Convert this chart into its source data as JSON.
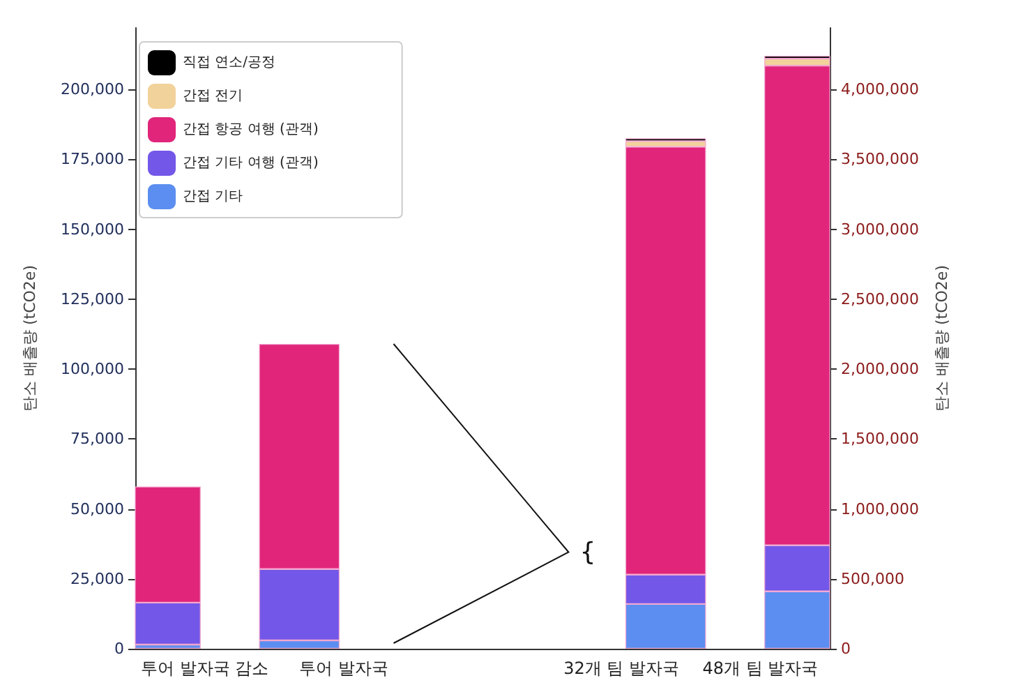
{
  "chart_data": {
    "type": "bar",
    "stacked": true,
    "categories": [
      "투어 발자국 감소",
      "투어 발자국",
      null,
      "32개 팀 발자국",
      "48개 팀 발자국"
    ],
    "ylabel": "탄소 배출량 (tCO2e)",
    "y2label": "탄소 배출량 (tCO2e)",
    "ylim": [
      0,
      222000
    ],
    "yticks": [
      {
        "value": 0,
        "label": "0"
      },
      {
        "value": 25000,
        "label": "25,000"
      },
      {
        "value": 50000,
        "label": "50,000"
      },
      {
        "value": 75000,
        "label": "75,000"
      },
      {
        "value": 100000,
        "label": "100,000"
      },
      {
        "value": 125000,
        "label": "125,000"
      },
      {
        "value": 150000,
        "label": "150,000"
      },
      {
        "value": 175000,
        "label": "175,000"
      },
      {
        "value": 200000,
        "label": "200,000"
      }
    ],
    "y2lim": [
      0,
      4440000
    ],
    "y2ticks": [
      {
        "value": 0,
        "label": "0"
      },
      {
        "value": 500000,
        "label": "500,000"
      },
      {
        "value": 1000000,
        "label": "1,000,000"
      },
      {
        "value": 1500000,
        "label": "1,500,000"
      },
      {
        "value": 2000000,
        "label": "2,000,000"
      },
      {
        "value": 2500000,
        "label": "2,500,000"
      },
      {
        "value": 3000000,
        "label": "3,000,000"
      },
      {
        "value": 3500000,
        "label": "3,500,000"
      },
      {
        "value": 4000000,
        "label": "4,000,000"
      }
    ],
    "series": [
      {
        "name": "간접 기타",
        "color": "#5b8ef0",
        "values": [
          1500,
          3000,
          null,
          null,
          null
        ]
      },
      {
        "name": "간접 기타 여행 (관객)",
        "color": "#7357e8",
        "values": [
          15000,
          25500,
          null,
          null,
          null
        ]
      },
      {
        "name": "간접 항공 여행 (관객)",
        "color": "#e0257a",
        "values": [
          41500,
          80500,
          null,
          null,
          null
        ]
      },
      {
        "color": "#5b8ef0",
        "axis": "y2",
        "values": [
          null,
          null,
          null,
          320000,
          410000
        ]
      },
      {
        "color": "#7357e8",
        "axis": "y2",
        "values": [
          null,
          null,
          null,
          210000,
          330000
        ]
      },
      {
        "color": "#e0257a",
        "axis": "y2",
        "values": [
          null,
          null,
          null,
          3060000,
          3430000
        ]
      },
      {
        "name": "간접 전기",
        "color": "#f2d29b",
        "axis": "y2",
        "values": [
          null,
          null,
          null,
          40000,
          50000
        ]
      },
      {
        "name": "직접 연소/공정",
        "color": "#000000",
        "axis": "y2",
        "values": [
          null,
          null,
          null,
          20000,
          20000
        ]
      }
    ],
    "legend": "top left",
    "annotations": [
      "{"
    ]
  }
}
